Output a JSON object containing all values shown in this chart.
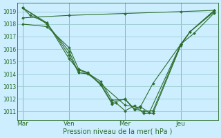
{
  "xlabel": "Pression niveau de la mer( hPa )",
  "bg_color": "#cceeff",
  "grid_color": "#99cccc",
  "line_color": "#2d6e2d",
  "ylim": [
    1010.3,
    1019.7
  ],
  "yticks": [
    1011,
    1012,
    1013,
    1014,
    1015,
    1016,
    1017,
    1018,
    1019
  ],
  "day_labels": [
    "Mar",
    "Ven",
    "Mer",
    "Jeu"
  ],
  "day_positions": [
    0,
    2.5,
    5.5,
    8.5
  ],
  "xlim": [
    -0.3,
    10.5
  ],
  "series": [
    {
      "x": [
        0,
        2.5,
        5.5,
        8.5,
        10.3
      ],
      "y": [
        1018.5,
        1018.7,
        1018.85,
        1019.0,
        1019.1
      ]
    },
    {
      "x": [
        0,
        0.4,
        1.3,
        2.5,
        3.0,
        3.5,
        4.2,
        4.8,
        5.0,
        5.5,
        6.0,
        6.5,
        7.0,
        8.5,
        9.0,
        10.3
      ],
      "y": [
        1019.3,
        1018.7,
        1018.1,
        1015.2,
        1014.3,
        1014.1,
        1013.1,
        1011.6,
        1011.7,
        1011.05,
        1011.45,
        1010.85,
        1010.85,
        1016.3,
        1017.4,
        1019.1
      ]
    },
    {
      "x": [
        0,
        1.3,
        2.5,
        3.0,
        3.5,
        4.2,
        4.8,
        5.5,
        6.0,
        6.5,
        7.0,
        8.5,
        9.0,
        10.3
      ],
      "y": [
        1019.3,
        1018.1,
        1015.5,
        1014.1,
        1014.0,
        1013.2,
        1011.7,
        1012.0,
        1011.2,
        1011.0,
        1011.05,
        1016.4,
        1017.4,
        1019.0
      ]
    },
    {
      "x": [
        0,
        1.3,
        2.5,
        3.0,
        3.5,
        4.2,
        4.8,
        5.5,
        6.0,
        6.3,
        6.8,
        8.5,
        9.0,
        10.3
      ],
      "y": [
        1019.3,
        1018.0,
        1015.8,
        1014.1,
        1014.05,
        1013.4,
        1011.9,
        1011.95,
        1011.15,
        1011.4,
        1010.9,
        1016.4,
        1017.4,
        1019.1
      ]
    },
    {
      "x": [
        0,
        1.3,
        2.5,
        3.0,
        3.5,
        4.2,
        5.5,
        6.3,
        7.0,
        8.5,
        9.2,
        10.3
      ],
      "y": [
        1018.0,
        1017.8,
        1016.1,
        1014.4,
        1014.1,
        1013.2,
        1011.5,
        1011.3,
        1013.25,
        1016.4,
        1017.25,
        1018.9
      ]
    }
  ]
}
